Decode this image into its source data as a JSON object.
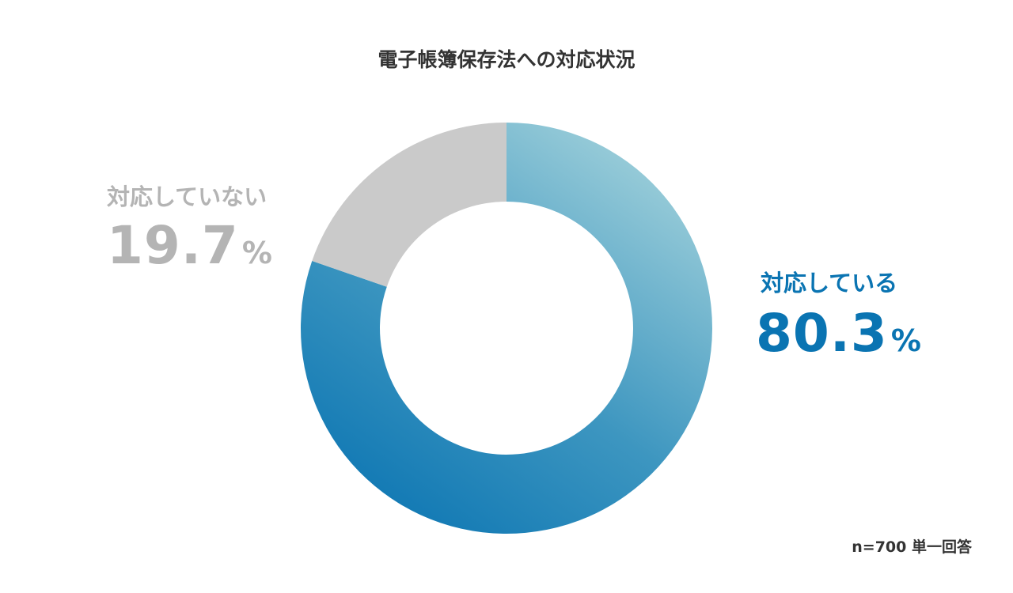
{
  "chart_data": {
    "type": "pie",
    "title": "電子帳簿保存法への対応状況",
    "categories": [
      "対応している",
      "対応していない"
    ],
    "values": [
      80.3,
      19.7
    ],
    "value_labels": [
      "80.3",
      "19.7"
    ],
    "unit": "%",
    "colors": {
      "対応している": "#0a74b2",
      "対応している_light": "#a6d4dc",
      "対応していない": "#cacaca",
      "対応していない_text": "#b4b4b4"
    },
    "note": "n=700 単一回答"
  }
}
